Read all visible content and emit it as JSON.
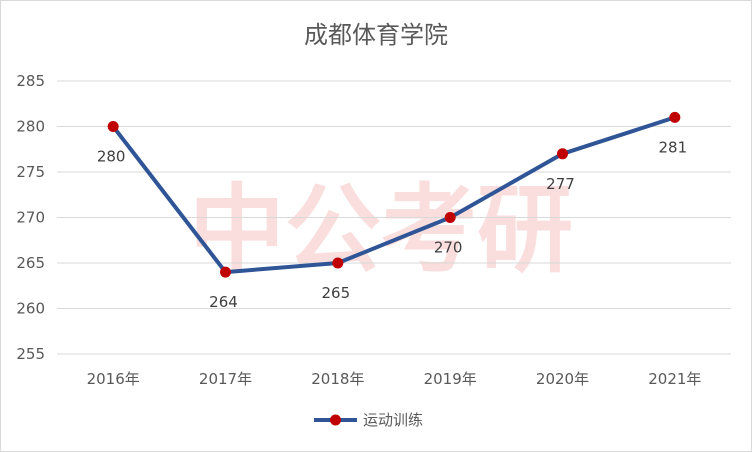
{
  "chart_data": {
    "type": "line",
    "title": "成都体育学院",
    "categories": [
      "2016年",
      "2017年",
      "2018年",
      "2019年",
      "2020年",
      "2021年"
    ],
    "series": [
      {
        "name": "运动训练",
        "values": [
          280,
          264,
          265,
          270,
          277,
          281
        ],
        "color": "#2f5597",
        "marker_color": "#c00000"
      }
    ],
    "ylim": [
      255,
      285
    ],
    "yticks": [
      255,
      260,
      265,
      270,
      275,
      280,
      285
    ],
    "grid": true,
    "legend": "bottom",
    "data_labels": true
  },
  "watermark": "中公考研"
}
